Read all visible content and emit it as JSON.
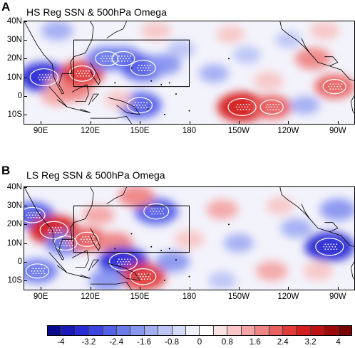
{
  "chart_data": [
    {
      "type": "heatmap",
      "panel_label": "A",
      "title": "HS Reg SSN & 500hPa Omega",
      "lat_ticks": [
        "40N",
        "30N",
        "20N",
        "10N",
        "0",
        "10S"
      ],
      "lon_ticks": [
        "90E",
        "120E",
        "150E",
        "180",
        "150W",
        "120W",
        "90W"
      ],
      "lon_range_deg_east": [
        80,
        280
      ],
      "lat_range": [
        -15,
        40
      ],
      "box": {
        "lon": [
          110,
          180
        ],
        "lat": [
          5,
          30
        ]
      },
      "anomalies": [
        {
          "lon": 92,
          "lat": 10,
          "value": -3.0
        },
        {
          "lon": 103,
          "lat": 6,
          "value": 1.2
        },
        {
          "lon": 100,
          "lat": 0,
          "value": 1.2
        },
        {
          "lon": 110,
          "lat": 3,
          "value": 1.6
        },
        {
          "lon": 115,
          "lat": 12,
          "value": 2.4
        },
        {
          "lon": 130,
          "lat": 20,
          "value": -2.0
        },
        {
          "lon": 140,
          "lat": 20,
          "value": -2.0
        },
        {
          "lon": 152,
          "lat": 15,
          "value": -2.4
        },
        {
          "lon": 165,
          "lat": 17,
          "value": -1.4
        },
        {
          "lon": 150,
          "lat": -5,
          "value": -2.4
        },
        {
          "lon": 137,
          "lat": -2,
          "value": 0.8
        },
        {
          "lon": 160,
          "lat": 35,
          "value": 1.0
        },
        {
          "lon": 175,
          "lat": 25,
          "value": -0.8
        },
        {
          "lon": 212,
          "lat": -6,
          "value": 3.0
        },
        {
          "lon": 230,
          "lat": -6,
          "value": 2.0
        },
        {
          "lon": 195,
          "lat": 12,
          "value": -1.0
        },
        {
          "lon": 215,
          "lat": 22,
          "value": -0.8
        },
        {
          "lon": 228,
          "lat": 8,
          "value": 1.0
        },
        {
          "lon": 255,
          "lat": 20,
          "value": 1.6
        },
        {
          "lon": 262,
          "lat": 35,
          "value": 1.0
        },
        {
          "lon": 268,
          "lat": 5,
          "value": 2.0
        },
        {
          "lon": 250,
          "lat": -5,
          "value": -1.0
        },
        {
          "lon": 240,
          "lat": 30,
          "value": -0.6
        },
        {
          "lon": 100,
          "lat": 35,
          "value": -1.2
        },
        {
          "lon": 205,
          "lat": 33,
          "value": 0.8
        }
      ]
    },
    {
      "type": "heatmap",
      "panel_label": "B",
      "title": "LS Reg SSN & 500hPa Omega",
      "lat_ticks": [
        "40N",
        "30N",
        "20N",
        "10N",
        "0",
        "10S"
      ],
      "lon_ticks": [
        "90E",
        "120E",
        "150E",
        "180",
        "150W",
        "120W",
        "90W"
      ],
      "lon_range_deg_east": [
        80,
        280
      ],
      "lat_range": [
        -15,
        40
      ],
      "box": {
        "lon": [
          110,
          180
        ],
        "lat": [
          5,
          30
        ]
      },
      "anomalies": [
        {
          "lon": 85,
          "lat": 25,
          "value": -2.4
        },
        {
          "lon": 98,
          "lat": 17,
          "value": 3.0
        },
        {
          "lon": 105,
          "lat": 10,
          "value": -2.0
        },
        {
          "lon": 118,
          "lat": 12,
          "value": 2.0
        },
        {
          "lon": 125,
          "lat": 25,
          "value": 1.2
        },
        {
          "lon": 135,
          "lat": 10,
          "value": 1.6
        },
        {
          "lon": 160,
          "lat": 27,
          "value": -2.4
        },
        {
          "lon": 148,
          "lat": 35,
          "value": 1.6
        },
        {
          "lon": 140,
          "lat": 0,
          "value": -3.0
        },
        {
          "lon": 152,
          "lat": -8,
          "value": 2.6
        },
        {
          "lon": 130,
          "lat": -10,
          "value": -1.6
        },
        {
          "lon": 170,
          "lat": 0,
          "value": -1.4
        },
        {
          "lon": 180,
          "lat": 12,
          "value": 1.0
        },
        {
          "lon": 200,
          "lat": 28,
          "value": 1.2
        },
        {
          "lon": 210,
          "lat": 10,
          "value": -1.0
        },
        {
          "lon": 230,
          "lat": -5,
          "value": 1.2
        },
        {
          "lon": 245,
          "lat": 18,
          "value": -1.2
        },
        {
          "lon": 265,
          "lat": 8,
          "value": -3.0
        },
        {
          "lon": 270,
          "lat": 28,
          "value": -1.6
        },
        {
          "lon": 258,
          "lat": -5,
          "value": 1.0
        },
        {
          "lon": 88,
          "lat": -5,
          "value": -2.0
        },
        {
          "lon": 200,
          "lat": -10,
          "value": -0.8
        },
        {
          "lon": 235,
          "lat": 30,
          "value": 0.8
        }
      ]
    }
  ],
  "colorbar": {
    "labels": [
      "-4",
      "-3.2",
      "-2.4",
      "-1.6",
      "-0.8",
      "0",
      "0.8",
      "1.6",
      "2.4",
      "3.2",
      "4"
    ],
    "levels": [
      -4,
      -3.6,
      -3.2,
      -2.8,
      -2.4,
      -2,
      -1.6,
      -1.2,
      -0.8,
      -0.4,
      -0.1,
      0.1,
      0.4,
      0.8,
      1.2,
      1.6,
      2,
      2.4,
      2.8,
      3.2,
      3.6,
      4
    ],
    "colors": [
      "#0a0a8c",
      "#1a1ab8",
      "#2b2bd6",
      "#3d44e0",
      "#5560e8",
      "#6d7aec",
      "#8996f0",
      "#a3aef3",
      "#bcc4f6",
      "#d4daf9",
      "#eef0fb",
      "#ffffff",
      "#fbe2e2",
      "#f8c6c6",
      "#f4a6a6",
      "#ef8585",
      "#e96060",
      "#e23b3b",
      "#d51e1e",
      "#bf1212",
      "#9e0a0a",
      "#7a0404"
    ]
  }
}
